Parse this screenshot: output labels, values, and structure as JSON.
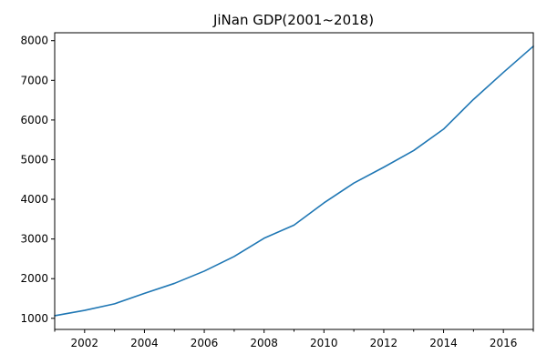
{
  "chart_data": {
    "type": "line",
    "title": "JiNan GDP(2001~2018)",
    "xlabel": "",
    "ylabel": "",
    "xlim": [
      2001,
      2017
    ],
    "ylim": [
      720,
      8200
    ],
    "x_ticks": [
      2002,
      2004,
      2006,
      2008,
      2010,
      2012,
      2014,
      2016
    ],
    "x_minor_ticks": [
      2001,
      2003,
      2005,
      2007,
      2009,
      2011,
      2013,
      2015,
      2017
    ],
    "y_ticks": [
      1000,
      2000,
      3000,
      4000,
      5000,
      6000,
      7000,
      8000
    ],
    "grid": false,
    "legend": "none",
    "series": [
      {
        "color": "#1f77b4",
        "x": [
          2001,
          2002,
          2003,
          2004,
          2005,
          2006,
          2007,
          2008,
          2009,
          2010,
          2011,
          2012,
          2013,
          2014,
          2015,
          2016,
          2017
        ],
        "values": [
          1065,
          1200,
          1365,
          1630,
          1880,
          2190,
          2560,
          3020,
          3350,
          3910,
          4410,
          4810,
          5230,
          5770,
          6520,
          7200,
          7860
        ]
      }
    ]
  }
}
